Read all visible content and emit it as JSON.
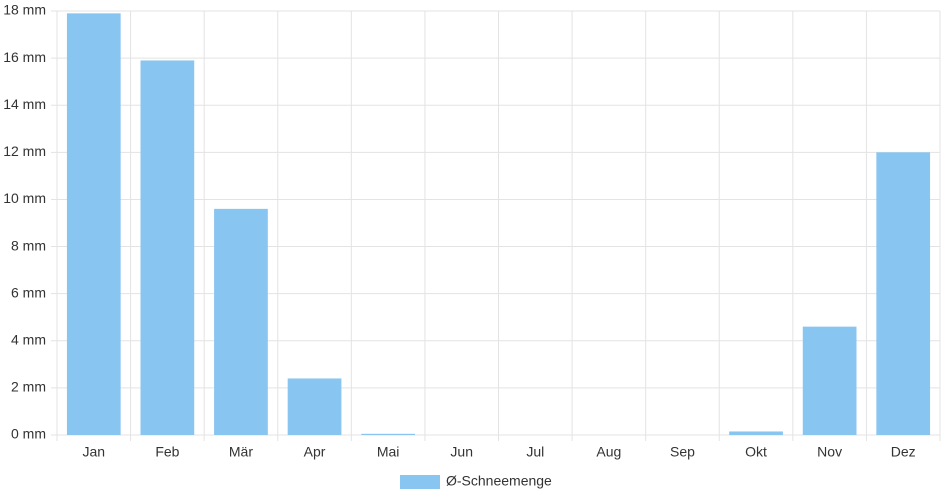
{
  "chart_data": {
    "type": "bar",
    "categories": [
      "Jan",
      "Feb",
      "Mär",
      "Apr",
      "Mai",
      "Jun",
      "Jul",
      "Aug",
      "Sep",
      "Okt",
      "Nov",
      "Dez"
    ],
    "series": [
      {
        "name": "Ø-Schneemenge",
        "color": "#88c5f0",
        "values": [
          17.9,
          15.9,
          9.6,
          2.4,
          0.05,
          0,
          0,
          0,
          0,
          0.15,
          4.6,
          12.0
        ]
      }
    ],
    "ylim": [
      0,
      18
    ],
    "yticks": [
      {
        "value": 0,
        "label": "0 mm"
      },
      {
        "value": 2,
        "label": "2 mm"
      },
      {
        "value": 4,
        "label": "4 mm"
      },
      {
        "value": 6,
        "label": "6 mm"
      },
      {
        "value": 8,
        "label": "8 mm"
      },
      {
        "value": 10,
        "label": "10 mm"
      },
      {
        "value": 12,
        "label": "12 mm"
      },
      {
        "value": 14,
        "label": "14 mm"
      },
      {
        "value": 16,
        "label": "16 mm"
      },
      {
        "value": 18,
        "label": "18 mm"
      }
    ],
    "grid": true,
    "legend": "bottom"
  }
}
